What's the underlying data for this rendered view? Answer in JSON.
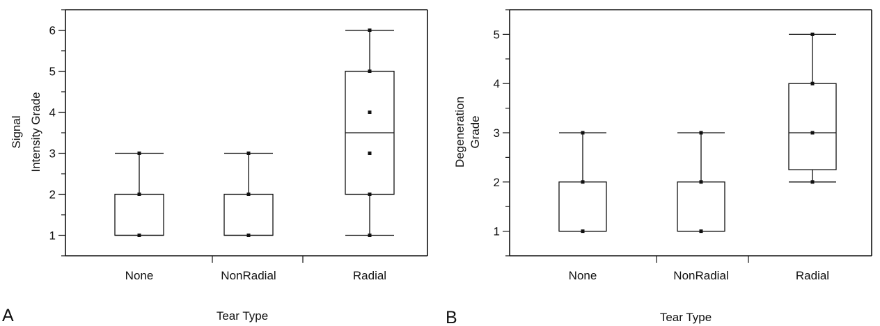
{
  "chart_data": [
    {
      "type": "box",
      "panel_label": "A",
      "xlabel": "Tear Type",
      "ylabel_lines": [
        "Signal",
        "Intensity Grade"
      ],
      "categories": [
        "None",
        "NonRadial",
        "Radial"
      ],
      "yticks": [
        1,
        2,
        3,
        4,
        5,
        6
      ],
      "ylim": [
        0.5,
        6.5
      ],
      "boxes": [
        {
          "category": "None",
          "whisker_low": 1,
          "q1": 1,
          "median": 1,
          "q3": 2,
          "whisker_high": 3,
          "points": [
            1,
            2,
            3
          ]
        },
        {
          "category": "NonRadial",
          "whisker_low": 1,
          "q1": 1,
          "median": 1,
          "q3": 2,
          "whisker_high": 3,
          "points": [
            1,
            2,
            3
          ]
        },
        {
          "category": "Radial",
          "whisker_low": 1,
          "q1": 2,
          "median": 3.5,
          "q3": 5,
          "whisker_high": 6,
          "points": [
            1,
            2,
            3,
            4,
            5,
            6
          ]
        }
      ]
    },
    {
      "type": "box",
      "panel_label": "B",
      "xlabel": "Tear Type",
      "ylabel_lines": [
        "Degeneration",
        "Grade"
      ],
      "categories": [
        "None",
        "NonRadial",
        "Radial"
      ],
      "yticks": [
        1,
        2,
        3,
        4,
        5
      ],
      "ylim": [
        0.5,
        5.5
      ],
      "boxes": [
        {
          "category": "None",
          "whisker_low": 1,
          "q1": 1,
          "median": 1,
          "q3": 2,
          "whisker_high": 3,
          "points": [
            1,
            2,
            3
          ]
        },
        {
          "category": "NonRadial",
          "whisker_low": 1,
          "q1": 1,
          "median": 1,
          "q3": 2,
          "whisker_high": 3,
          "points": [
            1,
            2,
            3
          ]
        },
        {
          "category": "Radial",
          "whisker_low": 2,
          "q1": 2.25,
          "median": 3,
          "q3": 4,
          "whisker_high": 5,
          "points": [
            2,
            3,
            4,
            5
          ]
        }
      ]
    }
  ]
}
